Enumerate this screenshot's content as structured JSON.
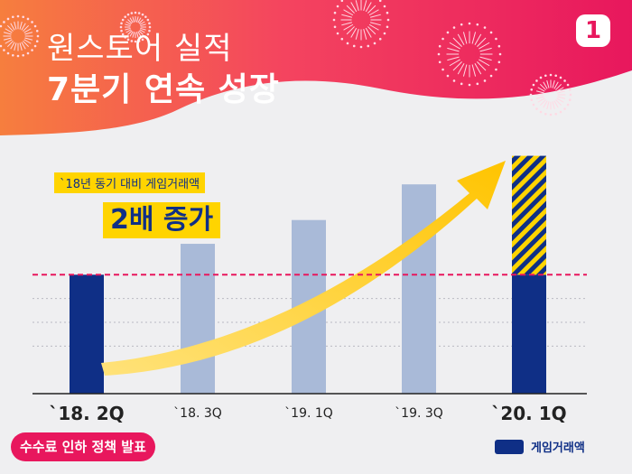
{
  "header": {
    "title_line1": "원스토어 실적",
    "title_line2": "7분기 연속 성장",
    "page_badge": "1"
  },
  "annotation": {
    "line1": "`18년 동기 대비 게임거래액",
    "line2": "2배 증가"
  },
  "policy_label": "수수료 인하 정책 발표",
  "colors": {
    "accent_pink": "#e8175d",
    "navy": "#0f2f86",
    "light_bar": "#a9bad8",
    "yellow": "#ffd400"
  },
  "chart_data": {
    "type": "bar",
    "categories": [
      "`18. 2Q",
      "`18. 3Q",
      "`19. 1Q",
      "`19. 3Q",
      "`20. 1Q"
    ],
    "values": [
      1,
      1.26,
      1.46,
      1.76,
      2
    ],
    "reference_value": 1,
    "highlight": [
      true,
      false,
      false,
      false,
      true
    ],
    "series": [
      {
        "name": "게임거래액",
        "values": [
          1,
          1.26,
          1.46,
          1.76,
          2
        ]
      }
    ],
    "ylim": [
      0,
      2.05
    ],
    "grid": true
  }
}
